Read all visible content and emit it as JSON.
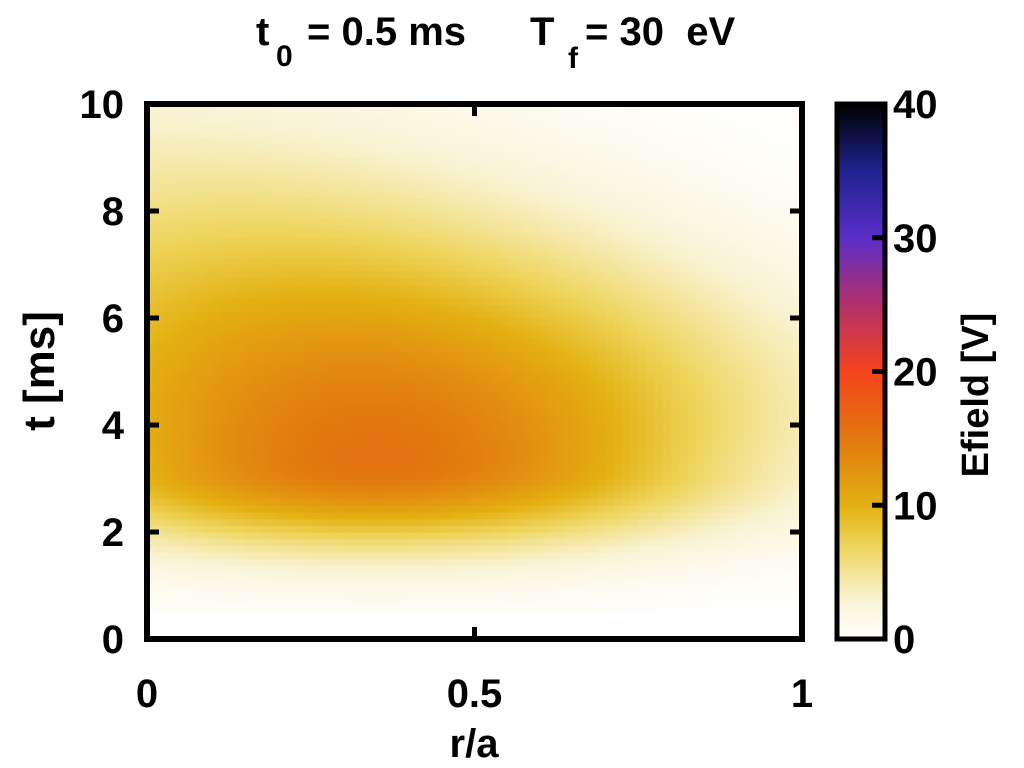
{
  "chart_data": {
    "type": "heatmap",
    "title": {
      "t0_symbol": "t",
      "t0_subscript": "0",
      "t0_value": "= 0.5 ms",
      "tf_symbol": "T",
      "tf_subscript": "f",
      "tf_value": "= 30  eV"
    },
    "xlabel": "r/a",
    "ylabel": "t [ms]",
    "colorbar_label": "Efield [V]",
    "xlim": [
      0,
      1
    ],
    "ylim": [
      0,
      10
    ],
    "clim": [
      0,
      40
    ],
    "x_ticks": [
      {
        "value": 0,
        "label": "0"
      },
      {
        "value": 0.5,
        "label": "0.5"
      },
      {
        "value": 1,
        "label": "1"
      }
    ],
    "y_ticks": [
      {
        "value": 0,
        "label": "0"
      },
      {
        "value": 2,
        "label": "2"
      },
      {
        "value": 4,
        "label": "4"
      },
      {
        "value": 6,
        "label": "6"
      },
      {
        "value": 8,
        "label": "8"
      },
      {
        "value": 10,
        "label": "10"
      }
    ],
    "colorbar_ticks": [
      {
        "value": 0,
        "label": "0"
      },
      {
        "value": 10,
        "label": "10"
      },
      {
        "value": 20,
        "label": "20"
      },
      {
        "value": 30,
        "label": "30"
      },
      {
        "value": 40,
        "label": "40"
      }
    ],
    "colormap": [
      [
        0,
        "#ffffff"
      ],
      [
        3,
        "#f9f3d3"
      ],
      [
        7,
        "#eed45a"
      ],
      [
        10,
        "#e3b012"
      ],
      [
        15,
        "#e2780f"
      ],
      [
        20,
        "#f5431c"
      ],
      [
        25,
        "#b2306a"
      ],
      [
        30,
        "#5a2ec8"
      ],
      [
        35,
        "#1e2390"
      ],
      [
        40,
        "#000000"
      ]
    ],
    "field_model": {
      "peak_value": 15.5,
      "peak_r": 0.35,
      "peak_t": 3.3,
      "t_onset": 0.5,
      "rise_width": 1.1,
      "decay_width_center": 2.3,
      "decay_width_slope": 1.5,
      "r_width": 0.38,
      "r_width_growth": 0.03
    },
    "grid": false,
    "legend": "colorbar-right"
  }
}
